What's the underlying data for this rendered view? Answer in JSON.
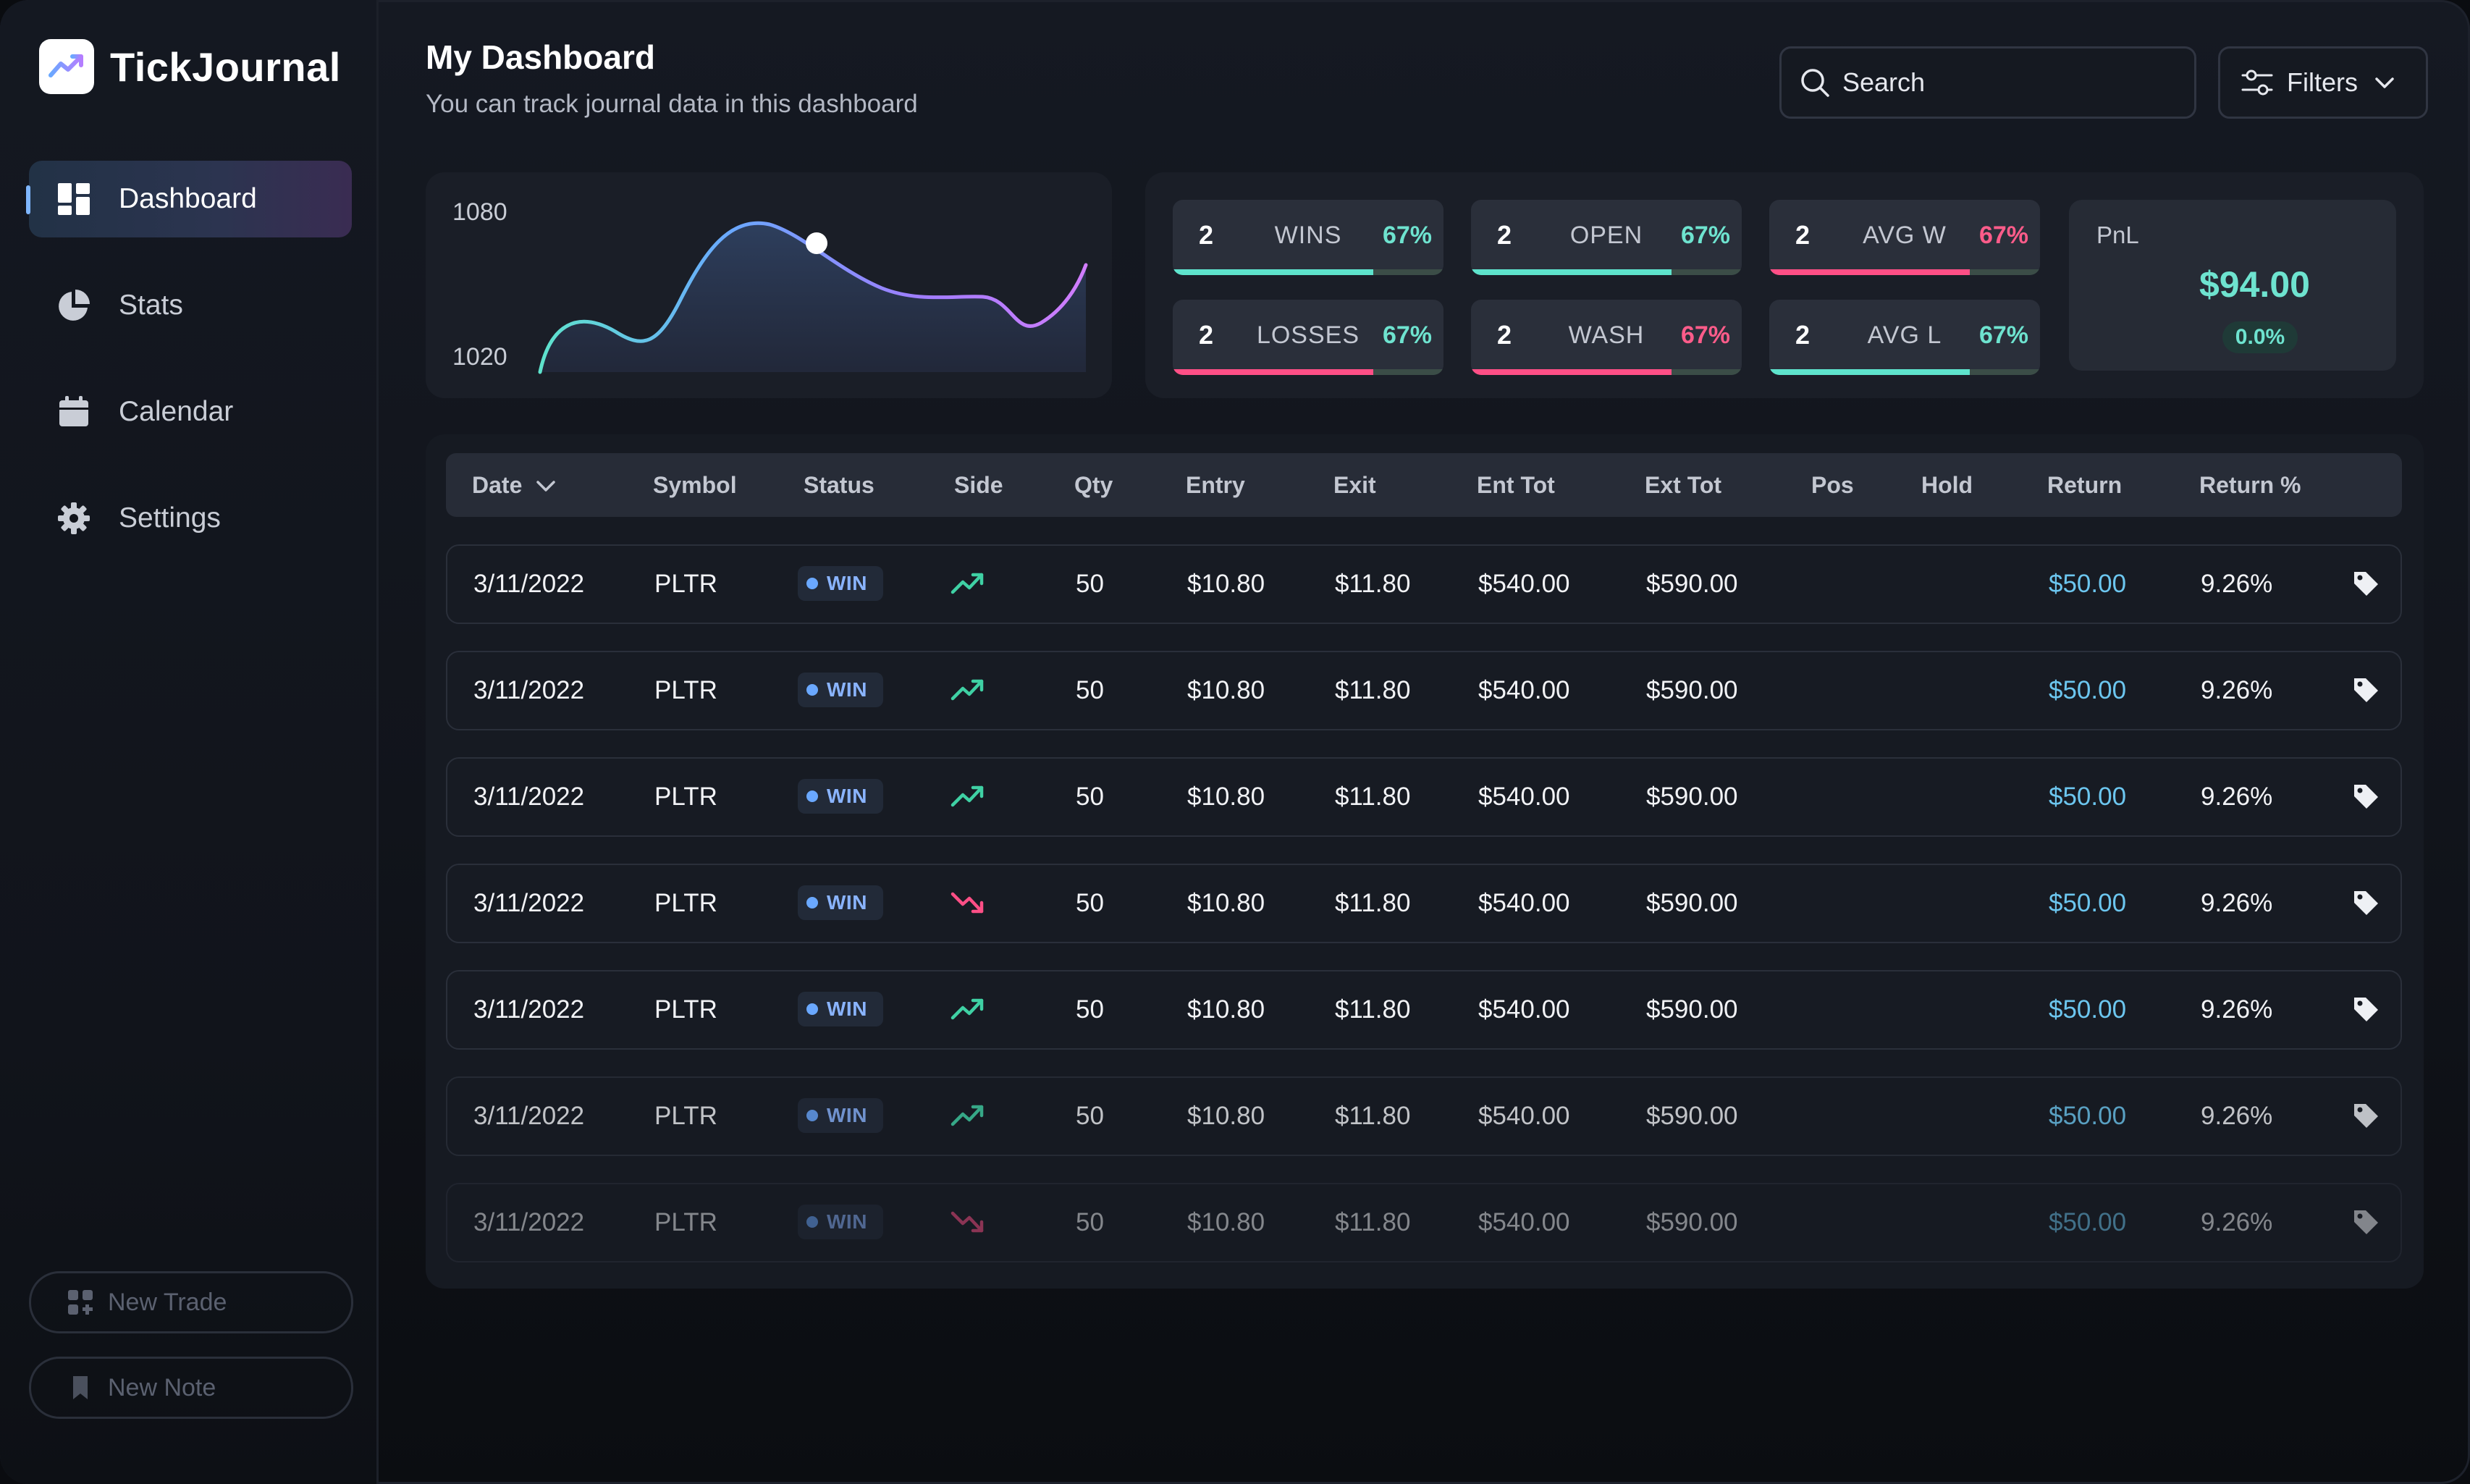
{
  "app": {
    "name": "TickJournal"
  },
  "sidebar": {
    "items": [
      {
        "label": "Dashboard",
        "icon": "dashboard-icon",
        "active": true
      },
      {
        "label": "Stats",
        "icon": "pie-chart-icon",
        "active": false
      },
      {
        "label": "Calendar",
        "icon": "calendar-icon",
        "active": false
      },
      {
        "label": "Settings",
        "icon": "gear-icon",
        "active": false
      }
    ],
    "new_trade_label": "New Trade",
    "new_note_label": "New Note"
  },
  "header": {
    "title": "My Dashboard",
    "subtitle": "You can track journal data in this dashboard",
    "search_placeholder": "Search",
    "filters_label": "Filters"
  },
  "chart": {
    "y_max_label": "1080",
    "y_min_label": "1020"
  },
  "stats": [
    {
      "count": "2",
      "label": "WINS",
      "percent": "67%",
      "percent_color": "#6ee3cf",
      "bar_color": "#5ee3cc",
      "fill": 0.74
    },
    {
      "count": "2",
      "label": "OPEN",
      "percent": "67%",
      "percent_color": "#6ee3cf",
      "bar_color": "#5ee3cc",
      "fill": 0.74
    },
    {
      "count": "2",
      "label": "AVG W",
      "percent": "67%",
      "percent_color": "#ff5c8a",
      "bar_color": "#ff4f86",
      "fill": 0.74
    },
    {
      "count": "2",
      "label": "LOSSES",
      "percent": "67%",
      "percent_color": "#6ee3cf",
      "bar_color": "#ff4f86",
      "fill": 0.74
    },
    {
      "count": "2",
      "label": "WASH",
      "percent": "67%",
      "percent_color": "#ff5c8a",
      "bar_color": "#ff4f86",
      "fill": 0.74
    },
    {
      "count": "2",
      "label": "AVG L",
      "percent": "67%",
      "percent_color": "#6ee3cf",
      "bar_color": "#5ee3cc",
      "fill": 0.74
    }
  ],
  "pnl": {
    "label": "PnL",
    "value": "$94.00",
    "change": "0.0%"
  },
  "table": {
    "columns": [
      "Date",
      "Symbol",
      "Status",
      "Side",
      "Qty",
      "Entry",
      "Exit",
      "Ent Tot",
      "Ext Tot",
      "Pos",
      "Hold",
      "Return",
      "Return %"
    ],
    "rows": [
      {
        "date": "3/11/2022",
        "symbol": "PLTR",
        "status": "WIN",
        "side": "up",
        "qty": "50",
        "entry": "$10.80",
        "exit": "$11.80",
        "ent_tot": "$540.00",
        "ext_tot": "$590.00",
        "pos": "",
        "hold": "",
        "return": "$50.00",
        "return_pct": "9.26%"
      },
      {
        "date": "3/11/2022",
        "symbol": "PLTR",
        "status": "WIN",
        "side": "up",
        "qty": "50",
        "entry": "$10.80",
        "exit": "$11.80",
        "ent_tot": "$540.00",
        "ext_tot": "$590.00",
        "pos": "",
        "hold": "",
        "return": "$50.00",
        "return_pct": "9.26%"
      },
      {
        "date": "3/11/2022",
        "symbol": "PLTR",
        "status": "WIN",
        "side": "up",
        "qty": "50",
        "entry": "$10.80",
        "exit": "$11.80",
        "ent_tot": "$540.00",
        "ext_tot": "$590.00",
        "pos": "",
        "hold": "",
        "return": "$50.00",
        "return_pct": "9.26%"
      },
      {
        "date": "3/11/2022",
        "symbol": "PLTR",
        "status": "WIN",
        "side": "down",
        "qty": "50",
        "entry": "$10.80",
        "exit": "$11.80",
        "ent_tot": "$540.00",
        "ext_tot": "$590.00",
        "pos": "",
        "hold": "",
        "return": "$50.00",
        "return_pct": "9.26%"
      },
      {
        "date": "3/11/2022",
        "symbol": "PLTR",
        "status": "WIN",
        "side": "up",
        "qty": "50",
        "entry": "$10.80",
        "exit": "$11.80",
        "ent_tot": "$540.00",
        "ext_tot": "$590.00",
        "pos": "",
        "hold": "",
        "return": "$50.00",
        "return_pct": "9.26%"
      },
      {
        "date": "3/11/2022",
        "symbol": "PLTR",
        "status": "WIN",
        "side": "up",
        "qty": "50",
        "entry": "$10.80",
        "exit": "$11.80",
        "ent_tot": "$540.00",
        "ext_tot": "$590.00",
        "pos": "",
        "hold": "",
        "return": "$50.00",
        "return_pct": "9.26%"
      },
      {
        "date": "3/11/2022",
        "symbol": "PLTR",
        "status": "WIN",
        "side": "down",
        "qty": "50",
        "entry": "$10.80",
        "exit": "$11.80",
        "ent_tot": "$540.00",
        "ext_tot": "$590.00",
        "pos": "",
        "hold": "",
        "return": "$50.00",
        "return_pct": "9.26%"
      }
    ]
  },
  "colors": {
    "accent_teal": "#5ee3cc",
    "accent_pink": "#ff4f86",
    "accent_blue": "#6aa8ff",
    "up_green": "#3fd1a4",
    "down_pink": "#ff4f86"
  }
}
